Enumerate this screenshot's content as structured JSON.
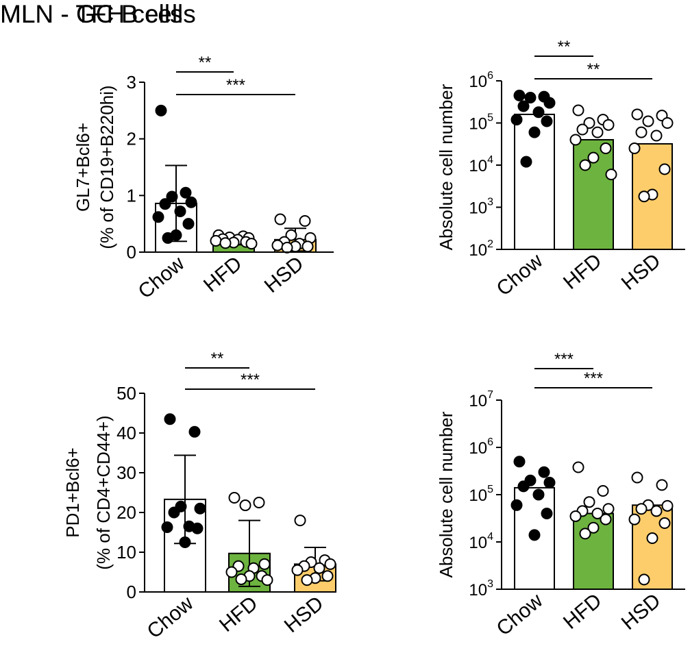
{
  "section_titles": {
    "gc": "MLN - GC B cells",
    "tfh": "MLN -  TFH cells"
  },
  "colors": {
    "Chow": "#ffffff",
    "HFD": "#6db33f",
    "HSD": "#fdcd6b",
    "dot_chow": "#000000",
    "dot_other": "#ffffff",
    "axis": "#000000"
  },
  "chart_data": [
    {
      "id": "gc-percent",
      "type": "bar",
      "scale": "linear",
      "categories": [
        "Chow",
        "HFD",
        "HSD"
      ],
      "ylabel": "GL7+Bcl6+",
      "ylabel2": "(% of CD19+B220hi)",
      "ylim": [
        0,
        3
      ],
      "ticks": [
        0,
        1,
        2,
        3
      ],
      "tick_labels": [
        "0",
        "1",
        "2",
        "3"
      ],
      "values": [
        0.86,
        0.2,
        0.22
      ],
      "error": [
        0.67,
        0.07,
        0.2
      ],
      "points": [
        [
          2.5,
          1.05,
          0.98,
          0.88,
          0.85,
          0.72,
          0.62,
          0.5,
          0.3,
          0.25
        ],
        [
          0.3,
          0.28,
          0.26,
          0.25,
          0.23,
          0.22,
          0.2,
          0.18,
          0.17,
          0.16,
          0.15
        ],
        [
          0.58,
          0.55,
          0.3,
          0.25,
          0.18,
          0.15,
          0.12,
          0.1,
          0.1,
          0.08
        ]
      ],
      "significance": [
        {
          "from": 0,
          "to": 1,
          "label": "**"
        },
        {
          "from": 0,
          "to": 2,
          "label": "***"
        }
      ]
    },
    {
      "id": "gc-absolute",
      "type": "bar",
      "scale": "log",
      "categories": [
        "Chow",
        "HFD",
        "HSD"
      ],
      "ylabel": "Absolute cell number",
      "ylim": [
        100,
        1000000
      ],
      "ticks": [
        100,
        1000,
        10000,
        100000,
        1000000
      ],
      "tick_base": "10",
      "tick_exponents": [
        "2",
        "3",
        "4",
        "5",
        "6"
      ],
      "values": [
        160000,
        40000,
        32000
      ],
      "points": [
        [
          450000,
          420000,
          400000,
          300000,
          250000,
          180000,
          120000,
          110000,
          60000,
          12000
        ],
        [
          200000,
          120000,
          100000,
          90000,
          70000,
          60000,
          40000,
          25000,
          15000,
          10000,
          6000
        ],
        [
          160000,
          150000,
          110000,
          100000,
          60000,
          50000,
          25000,
          8000,
          2000,
          1800
        ]
      ],
      "significance": [
        {
          "from": 0,
          "to": 1,
          "label": "**"
        },
        {
          "from": 0,
          "to": 2,
          "label": "**"
        }
      ]
    },
    {
      "id": "tfh-percent",
      "type": "bar",
      "scale": "linear",
      "categories": [
        "Chow",
        "HFD",
        "HSD"
      ],
      "ylabel": "PD1+Bcl6+",
      "ylabel2": "(% of CD4+CD44+)",
      "ylim": [
        0,
        50
      ],
      "ticks": [
        0,
        10,
        20,
        30,
        40,
        50
      ],
      "tick_labels": [
        "0",
        "10",
        "20",
        "30",
        "40",
        "50"
      ],
      "values": [
        23.3,
        9.7,
        7
      ],
      "error": [
        11.1,
        8.3,
        4.2
      ],
      "points": [
        [
          43.5,
          40.3,
          21.5,
          21,
          20,
          16.5,
          16.3,
          16,
          12.5
        ],
        [
          23.7,
          22.5,
          21.8,
          7,
          6.5,
          6,
          5,
          4,
          4,
          3.2,
          3
        ],
        [
          18,
          8,
          7.5,
          7,
          6.5,
          6,
          5.5,
          4,
          3.5,
          3
        ]
      ],
      "significance": [
        {
          "from": 0,
          "to": 1,
          "label": "**"
        },
        {
          "from": 0,
          "to": 2,
          "label": "***"
        }
      ]
    },
    {
      "id": "tfh-absolute",
      "type": "bar",
      "scale": "log",
      "categories": [
        "Chow",
        "HFD",
        "HSD"
      ],
      "ylabel": "Absolute cell number",
      "ylim": [
        1000,
        10000000
      ],
      "ticks": [
        1000,
        10000,
        100000,
        1000000,
        10000000
      ],
      "tick_base": "10",
      "tick_exponents": [
        "3",
        "4",
        "5",
        "6",
        "7"
      ],
      "values": [
        140000,
        40000,
        60000
      ],
      "points": [
        [
          500000,
          300000,
          200000,
          180000,
          150000,
          100000,
          60000,
          40000,
          14000
        ],
        [
          380000,
          120000,
          70000,
          50000,
          45000,
          40000,
          35000,
          30000,
          20000,
          15000
        ],
        [
          230000,
          160000,
          60000,
          58000,
          50000,
          45000,
          30000,
          25000,
          12000,
          1600
        ]
      ],
      "significance": [
        {
          "from": 0,
          "to": 1,
          "label": "***"
        },
        {
          "from": 0,
          "to": 2,
          "label": "***"
        }
      ]
    }
  ]
}
